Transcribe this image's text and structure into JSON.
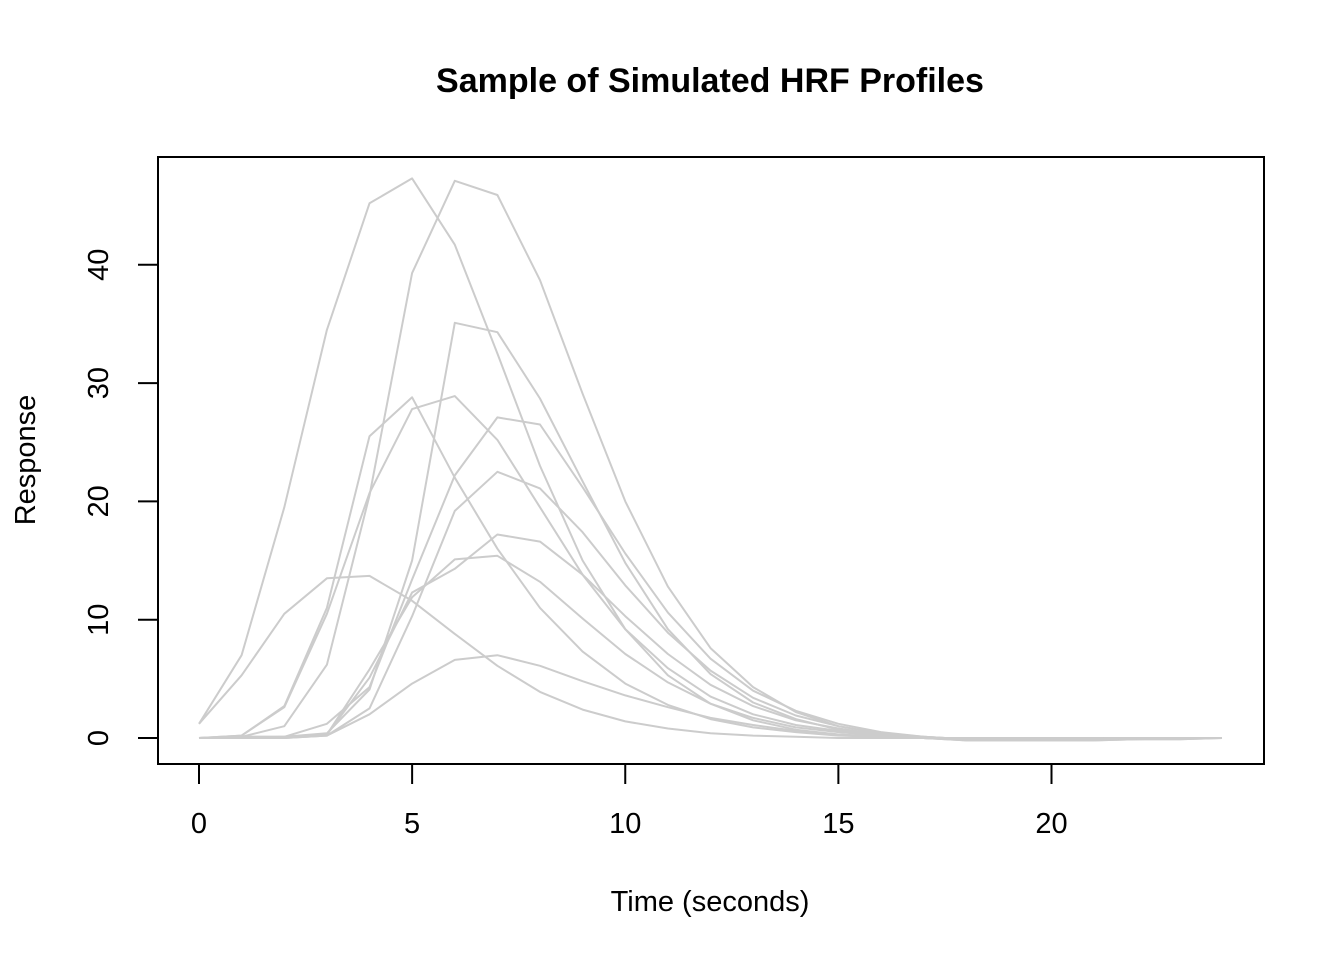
{
  "chart_data": {
    "type": "line",
    "title": "Sample of Simulated HRF Profiles",
    "xlabel": "Time (seconds)",
    "ylabel": "Response",
    "xlim": [
      0,
      24
    ],
    "ylim": [
      0,
      46
    ],
    "xticks": [
      0,
      5,
      10,
      15,
      20
    ],
    "yticks": [
      0,
      10,
      20,
      30,
      40
    ],
    "grid": false,
    "legend": "none",
    "line_color": "#cccccc",
    "x": [
      0,
      1,
      2,
      3,
      4,
      5,
      6,
      7,
      8,
      9,
      10,
      11,
      12,
      13,
      14,
      15,
      16,
      17,
      18,
      19,
      20,
      21,
      22,
      23,
      24
    ],
    "series": [
      {
        "values": [
          1.2,
          7.0,
          19.5,
          34.5,
          45.2,
          47.3,
          41.7,
          32.5,
          23.0,
          15.0,
          9.2,
          5.3,
          2.9,
          1.5,
          0.7,
          0.3,
          0.1,
          0.0,
          -0.1,
          -0.1,
          -0.1,
          -0.1,
          0.0,
          0.0,
          0.0
        ]
      },
      {
        "values": [
          0,
          0.1,
          1.0,
          6.2,
          20.5,
          39.3,
          47.1,
          45.9,
          38.7,
          29.1,
          20.0,
          12.8,
          7.6,
          4.3,
          2.2,
          1.0,
          0.4,
          0.0,
          -0.2,
          -0.2,
          -0.2,
          -0.2,
          -0.1,
          -0.1,
          0.0
        ]
      },
      {
        "values": [
          0,
          0.2,
          2.7,
          11.0,
          25.5,
          28.8,
          22.0,
          16.0,
          11.0,
          7.3,
          4.6,
          2.8,
          1.6,
          0.9,
          0.5,
          0.2,
          0.1,
          0.0,
          -0.1,
          -0.1,
          -0.1,
          -0.1,
          0.0,
          0.0,
          0.0
        ]
      },
      {
        "values": [
          0,
          0.2,
          2.6,
          10.5,
          20.7,
          27.8,
          28.9,
          25.2,
          19.5,
          13.8,
          9.2,
          5.9,
          3.5,
          2.0,
          1.1,
          0.6,
          0.2,
          0.0,
          -0.1,
          -0.1,
          -0.1,
          -0.1,
          0.0,
          0.0,
          0.0
        ]
      },
      {
        "values": [
          0,
          0.1,
          0.1,
          1.2,
          4.3,
          13.4,
          22.2,
          27.1,
          26.5,
          21.2,
          15.6,
          10.6,
          6.7,
          4.0,
          2.3,
          1.2,
          0.5,
          0.1,
          -0.1,
          -0.1,
          -0.1,
          -0.1,
          -0.1,
          0.0,
          0.0
        ]
      },
      {
        "values": [
          0,
          0.1,
          0.1,
          0.4,
          4.1,
          15.0,
          35.1,
          34.3,
          28.7,
          21.7,
          14.8,
          9.2,
          5.4,
          3.0,
          1.6,
          0.7,
          0.2,
          0.0,
          -0.2,
          -0.2,
          -0.2,
          -0.2,
          -0.1,
          -0.1,
          0.0
        ]
      },
      {
        "values": [
          0,
          0,
          0,
          0.2,
          2.5,
          10.3,
          19.2,
          22.5,
          21.1,
          17.4,
          12.9,
          8.9,
          5.7,
          3.4,
          1.9,
          1.0,
          0.4,
          0.1,
          -0.1,
          -0.1,
          -0.1,
          -0.1,
          0.0,
          0.0,
          0.0
        ]
      },
      {
        "values": [
          1.2,
          5.3,
          10.5,
          13.5,
          13.7,
          11.6,
          8.8,
          6.1,
          3.9,
          2.4,
          1.4,
          0.8,
          0.4,
          0.2,
          0.1,
          0.0,
          0.0,
          0.0,
          0.0,
          0.0,
          0.0,
          0.0,
          0.0,
          0.0,
          0.0
        ]
      },
      {
        "values": [
          0,
          0,
          0.1,
          0.3,
          5.8,
          11.9,
          15.1,
          15.4,
          13.2,
          10.1,
          7.1,
          4.7,
          2.9,
          1.7,
          0.9,
          0.5,
          0.2,
          0.0,
          -0.1,
          -0.1,
          -0.1,
          -0.1,
          0.0,
          0.0,
          0.0
        ]
      },
      {
        "values": [
          0,
          0,
          0,
          0.2,
          2.0,
          4.6,
          6.6,
          7.0,
          6.1,
          4.8,
          3.6,
          2.6,
          1.7,
          1.1,
          0.6,
          0.3,
          0.1,
          0.0,
          -0.1,
          -0.1,
          -0.1,
          -0.1,
          0.0,
          0.0,
          0.0
        ]
      },
      {
        "values": [
          0,
          0,
          0,
          0.3,
          5.1,
          12.3,
          14.3,
          17.2,
          16.6,
          13.8,
          10.3,
          7.1,
          4.5,
          2.7,
          1.5,
          0.8,
          0.3,
          0.1,
          -0.1,
          -0.1,
          -0.1,
          -0.1,
          0.0,
          0.0,
          0.0
        ]
      }
    ]
  }
}
